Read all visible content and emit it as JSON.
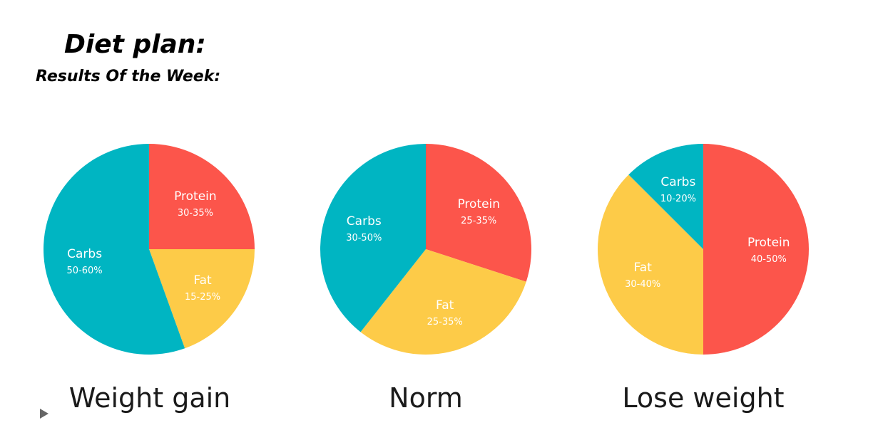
{
  "header": {
    "title": "Diet plan:",
    "subtitle": "Results Of the Week:"
  },
  "colors": {
    "carbs": "#00b5c2",
    "protein": "#fc554b",
    "fat": "#fdcb48"
  },
  "icons": [
    "play-icon"
  ],
  "chart_data": [
    {
      "type": "pie",
      "title": "Weight gain",
      "slices": [
        {
          "label": "Protein",
          "range": "30-35%",
          "value": 0.25,
          "color": "#fc554b"
        },
        {
          "label": "Fat",
          "range": "15-25%",
          "value": 0.195,
          "color": "#fdcb48"
        },
        {
          "label": "Carbs",
          "range": "50-60%",
          "value": 0.555,
          "color": "#00b5c2"
        }
      ]
    },
    {
      "type": "pie",
      "title": "Norm",
      "slices": [
        {
          "label": "Protein",
          "range": "25-35%",
          "value": 0.3,
          "color": "#fc554b"
        },
        {
          "label": "Fat",
          "range": "25-35%",
          "value": 0.306,
          "color": "#fdcb48"
        },
        {
          "label": "Carbs",
          "range": "30-50%",
          "value": 0.394,
          "color": "#00b5c2"
        }
      ]
    },
    {
      "type": "pie",
      "title": "Lose weight",
      "slices": [
        {
          "label": "Protein",
          "range": "40-50%",
          "value": 0.5,
          "color": "#fc554b"
        },
        {
          "label": "Fat",
          "range": "30-40%",
          "value": 0.375,
          "color": "#fdcb48"
        },
        {
          "label": "Carbs",
          "range": "10-20%",
          "value": 0.125,
          "color": "#00b5c2"
        }
      ]
    }
  ]
}
